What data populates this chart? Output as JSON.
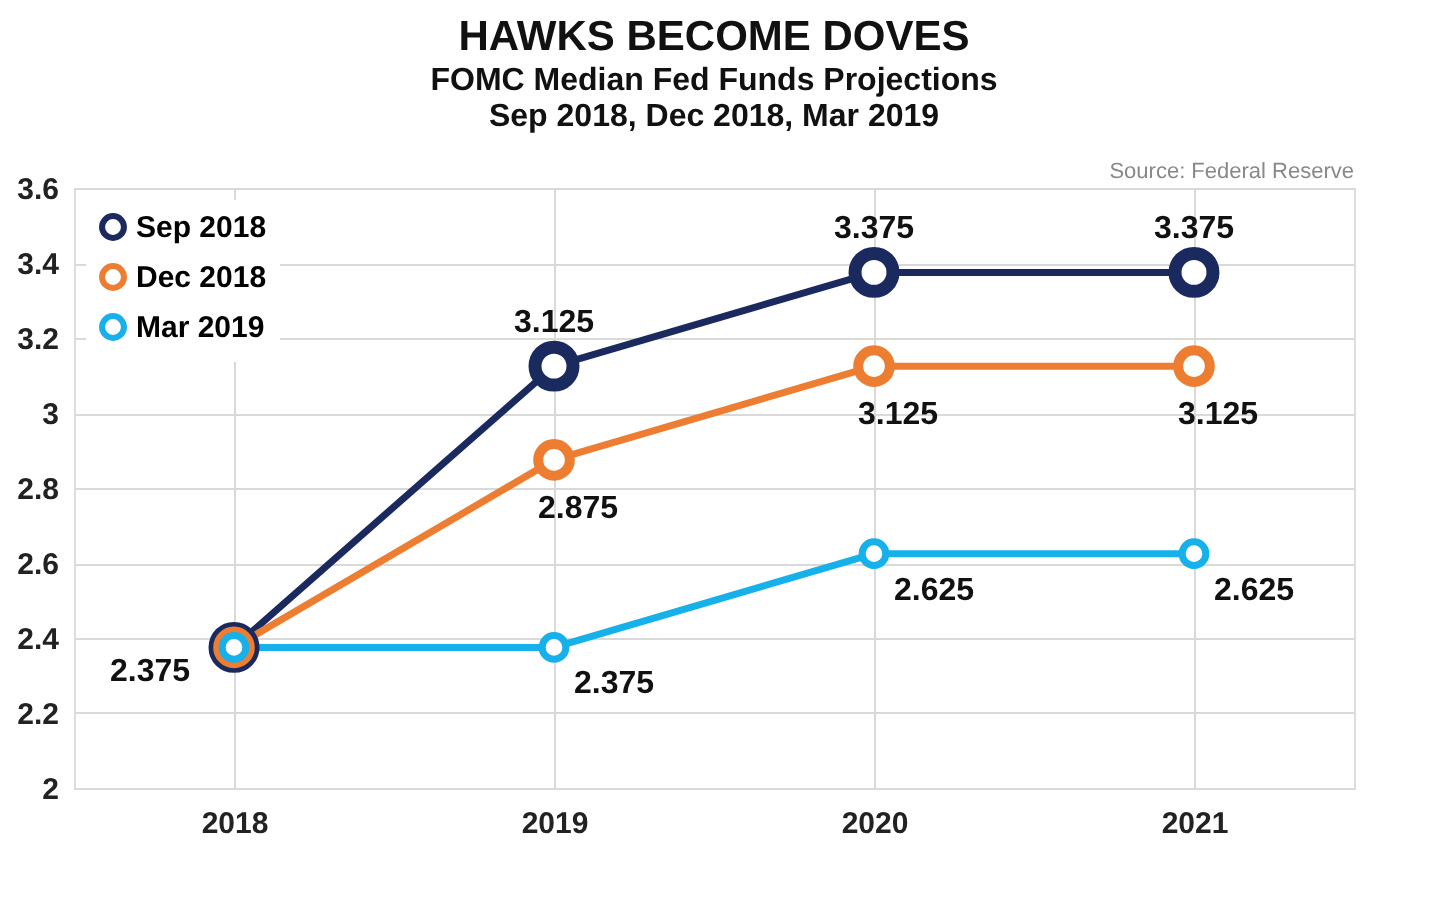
{
  "chart_data": {
    "type": "line",
    "title": "HAWKS BECOME DOVES",
    "subtitle": "FOMC Median Fed Funds Projections\nSep 2018, Dec 2018, Mar 2019",
    "annotations": [
      "Source: Federal Reserve"
    ],
    "categories": [
      "2018",
      "2019",
      "2020",
      "2021"
    ],
    "series": [
      {
        "name": "Sep 2018",
        "color": "#1b2a5e",
        "values": [
          2.375,
          3.125,
          3.375,
          3.375
        ],
        "value_labels": [
          null,
          "3.125",
          "3.375",
          "3.375"
        ]
      },
      {
        "name": "Dec 2018",
        "color": "#ed7d31",
        "values": [
          2.375,
          2.875,
          3.125,
          3.125
        ],
        "value_labels": [
          null,
          "2.875",
          "3.125",
          "3.125"
        ]
      },
      {
        "name": "Mar 2019",
        "color": "#16b0ea",
        "values": [
          2.375,
          2.375,
          2.625,
          2.625
        ],
        "value_labels": [
          "2.375",
          "2.375",
          "2.625",
          "2.625"
        ]
      }
    ],
    "ylim": [
      2,
      3.6
    ],
    "yticks": [
      2,
      2.2,
      2.4,
      2.6,
      2.8,
      3,
      3.2,
      3.4,
      3.6
    ],
    "grid": true,
    "legend": "top left",
    "marker": "circle",
    "line_style": "solid"
  }
}
